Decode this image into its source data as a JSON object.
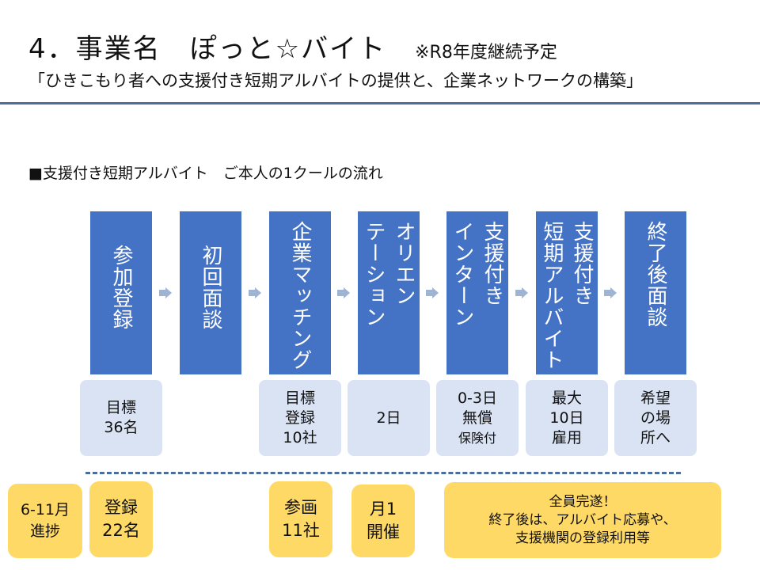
{
  "header": {
    "title": "4．事業名　ぽっと☆バイト",
    "note": "※R8年度継続予定",
    "subtitle": "「ひきこもり者への支援付き短期アルバイトの提供と、企業ネットワークの構築」"
  },
  "section_heading": "■支援付き短期アルバイト　ご本人の1クールの流れ",
  "steps": [
    {
      "label": "参加登録"
    },
    {
      "label": "初回面談"
    },
    {
      "label": "企業マッチング"
    },
    {
      "label": "オリエン\nテーション"
    },
    {
      "label": "支援付き\nインターン"
    },
    {
      "label": "支援付き\n短期アルバイト"
    },
    {
      "label": "終了後面談"
    }
  ],
  "details": [
    {
      "lines": [
        "目標",
        "36名"
      ]
    },
    {
      "lines": [
        "目標",
        "登録",
        "10社"
      ]
    },
    {
      "lines": [
        "2日"
      ]
    },
    {
      "lines": [
        "0-3日",
        "無償"
      ],
      "small": "保険付"
    },
    {
      "lines": [
        "最大",
        "10日",
        "雇用"
      ]
    },
    {
      "lines": [
        "希望",
        "の場",
        "所へ"
      ]
    }
  ],
  "progress": {
    "label": [
      "6-11月",
      "進捗"
    ],
    "registrations": [
      "登録",
      "22名"
    ],
    "companies": [
      "参画",
      "11社"
    ],
    "meetings": [
      "月1",
      "開催"
    ],
    "outcome": [
      "全員完遂！",
      "終了後は、アルバイト応募や、",
      "支援機関の登録利用等"
    ]
  },
  "colors": {
    "step_fill": "#4472c4",
    "detail_fill": "#dae3f3",
    "progress_fill": "#ffd966",
    "rule": "#4a6f9e",
    "arrow": "#9fb3d4"
  }
}
